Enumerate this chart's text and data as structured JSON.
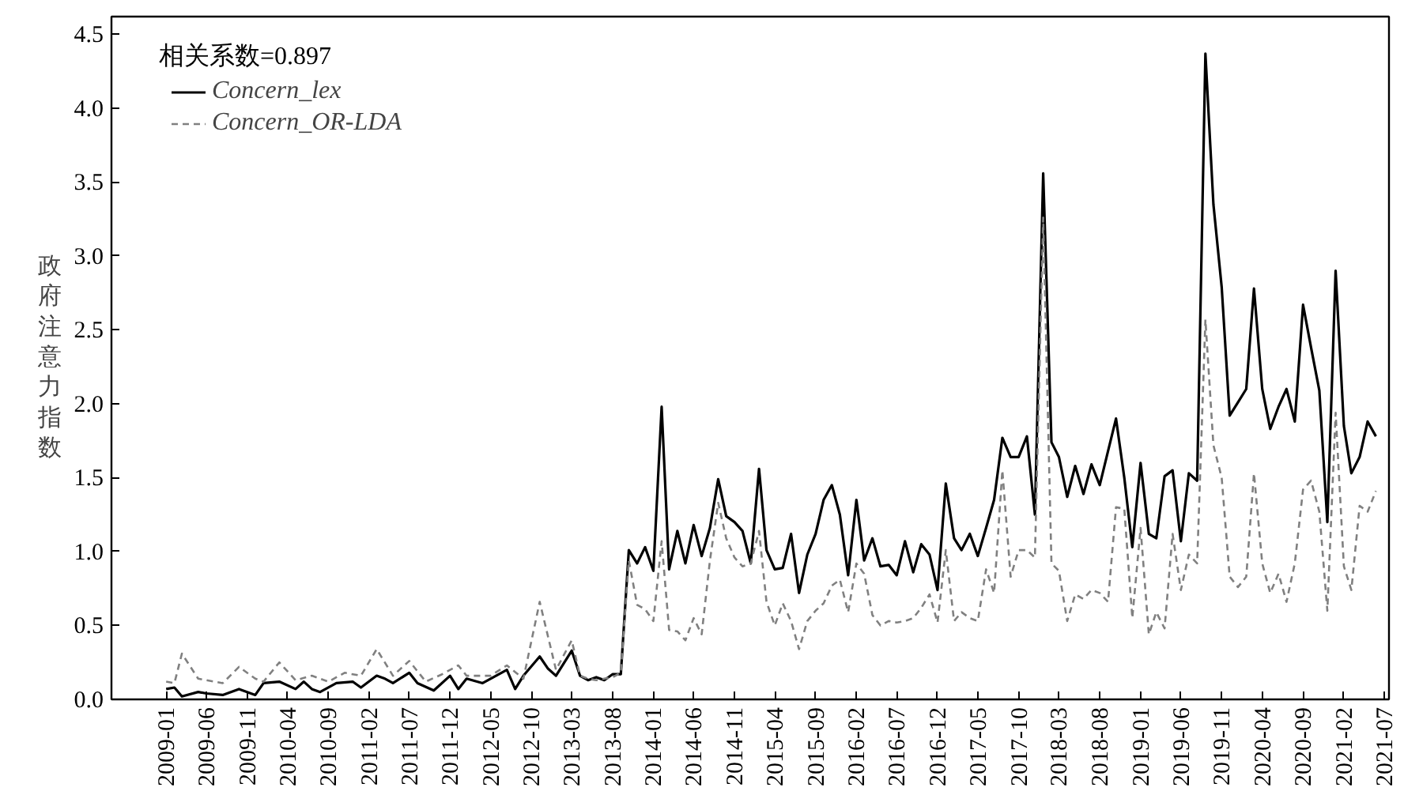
{
  "chart_data": {
    "type": "line",
    "ylabel": "政府注意力指数",
    "annotations": [
      "相关系数=0.897"
    ],
    "xlim": [
      "2008-06-10",
      "2021-07-20"
    ],
    "ylim": [
      0,
      4.62
    ],
    "xticks": [
      "2009-01",
      "2009-06",
      "2009-11",
      "2010-04",
      "2010-09",
      "2011-02",
      "2011-07",
      "2011-12",
      "2012-05",
      "2012-10",
      "2013-03",
      "2013-08",
      "2014-01",
      "2014-06",
      "2014-11",
      "2015-04",
      "2015-09",
      "2016-02",
      "2016-07",
      "2016-12",
      "2017-05",
      "2017-10",
      "2018-03",
      "2018-08",
      "2019-01",
      "2019-06",
      "2019-11",
      "2020-04",
      "2020-09",
      "2021-02",
      "2021-07"
    ],
    "yticks": [
      {
        "value": 0,
        "label": "0.0"
      },
      {
        "value": 0.5,
        "label": "0.5"
      },
      {
        "value": 1,
        "label": "1.0"
      },
      {
        "value": 1.5,
        "label": "1.5"
      },
      {
        "value": 2,
        "label": "2.0"
      },
      {
        "value": 2.5,
        "label": "2.5"
      },
      {
        "value": 3,
        "label": "3.0"
      },
      {
        "value": 3.5,
        "label": "3.5"
      },
      {
        "value": 4,
        "label": "4.0"
      },
      {
        "value": 4.5,
        "label": "4.5"
      }
    ],
    "grid": false,
    "legend": "top left",
    "series": [
      {
        "name": "Concern_lex",
        "color": "#000000",
        "line_style": "solid",
        "x": [
          "2009-01",
          "2009-02",
          "2009-03",
          "2009-05",
          "2009-06",
          "2009-08",
          "2009-10",
          "2009-12",
          "2010-01",
          "2010-03",
          "2010-05",
          "2010-06",
          "2010-07",
          "2010-08",
          "2010-10",
          "2010-12",
          "2011-01",
          "2011-03",
          "2011-04",
          "2011-05",
          "2011-07",
          "2011-08",
          "2011-10",
          "2011-12",
          "2012-01",
          "2012-02",
          "2012-04",
          "2012-05",
          "2012-07",
          "2012-08",
          "2012-09",
          "2012-11",
          "2012-12",
          "2013-01",
          "2013-03",
          "2013-04",
          "2013-05",
          "2013-06",
          "2013-07",
          "2013-08",
          "2013-09",
          "2013-10",
          "2013-11",
          "2013-12",
          "2014-01",
          "2014-02",
          "2014-03",
          "2014-04",
          "2014-05",
          "2014-06",
          "2014-07",
          "2014-08",
          "2014-09",
          "2014-10",
          "2014-11",
          "2014-12",
          "2015-01",
          "2015-02",
          "2015-03",
          "2015-04",
          "2015-05",
          "2015-06",
          "2015-07",
          "2015-08",
          "2015-09",
          "2015-10",
          "2015-11",
          "2015-12",
          "2016-01",
          "2016-02",
          "2016-03",
          "2016-04",
          "2016-05",
          "2016-06",
          "2016-07",
          "2016-08",
          "2016-09",
          "2016-10",
          "2016-11",
          "2016-12",
          "2017-01",
          "2017-02",
          "2017-03",
          "2017-04",
          "2017-05",
          "2017-06",
          "2017-07",
          "2017-08",
          "2017-09",
          "2017-10",
          "2017-11",
          "2017-12",
          "2018-01",
          "2018-02",
          "2018-03",
          "2018-04",
          "2018-05",
          "2018-06",
          "2018-07",
          "2018-08",
          "2018-09",
          "2018-10",
          "2018-11",
          "2018-12",
          "2019-01",
          "2019-02",
          "2019-03",
          "2019-04",
          "2019-05",
          "2019-06",
          "2019-07",
          "2019-08",
          "2019-09",
          "2019-10",
          "2019-11",
          "2019-12",
          "2020-01",
          "2020-02",
          "2020-03",
          "2020-04",
          "2020-05",
          "2020-06",
          "2020-07",
          "2020-08",
          "2020-09",
          "2020-10",
          "2020-11",
          "2020-12",
          "2021-01",
          "2021-02",
          "2021-03",
          "2021-04",
          "2021-05",
          "2021-06"
        ],
        "values": [
          0.07,
          0.08,
          0.02,
          0.05,
          0.04,
          0.03,
          0.07,
          0.03,
          0.11,
          0.12,
          0.07,
          0.12,
          0.07,
          0.05,
          0.11,
          0.12,
          0.08,
          0.16,
          0.14,
          0.11,
          0.18,
          0.11,
          0.06,
          0.16,
          0.07,
          0.14,
          0.11,
          0.14,
          0.2,
          0.07,
          0.16,
          0.29,
          0.21,
          0.16,
          0.33,
          0.16,
          0.13,
          0.15,
          0.13,
          0.17,
          0.17,
          1.01,
          0.92,
          1.03,
          0.87,
          1.98,
          0.88,
          1.14,
          0.92,
          1.18,
          0.97,
          1.16,
          1.49,
          1.24,
          1.2,
          1.14,
          0.92,
          1.56,
          1.01,
          0.88,
          0.89,
          1.12,
          0.72,
          0.98,
          1.12,
          1.35,
          1.45,
          1.25,
          0.84,
          1.35,
          0.94,
          1.09,
          0.9,
          0.91,
          0.84,
          1.07,
          0.86,
          1.05,
          0.98,
          0.74,
          1.46,
          1.09,
          1.01,
          1.12,
          0.97,
          1.16,
          1.35,
          1.77,
          1.64,
          1.64,
          1.78,
          1.25,
          3.56,
          1.74,
          1.64,
          1.37,
          1.58,
          1.39,
          1.59,
          1.45,
          1.68,
          1.9,
          1.5,
          1.03,
          1.6,
          1.12,
          1.09,
          1.51,
          1.55,
          1.07,
          1.53,
          1.48,
          4.37,
          3.35,
          2.79,
          1.92,
          2.01,
          2.1,
          2.78,
          2.1,
          1.83,
          1.98,
          2.1,
          1.88,
          2.67,
          2.38,
          2.09,
          1.2,
          2.9,
          1.85,
          1.53,
          1.64,
          1.88,
          1.78
        ]
      },
      {
        "name": "Concern_OR-LDA",
        "color": "#808080",
        "line_style": "dashed",
        "x": [
          "2009-01",
          "2009-02",
          "2009-03",
          "2009-05",
          "2009-08",
          "2009-10",
          "2009-12",
          "2010-01",
          "2010-03",
          "2010-05",
          "2010-07",
          "2010-09",
          "2010-11",
          "2011-01",
          "2011-03",
          "2011-05",
          "2011-07",
          "2011-09",
          "2011-11",
          "2012-01",
          "2012-02",
          "2012-05",
          "2012-07",
          "2012-09",
          "2012-11",
          "2013-01",
          "2013-03",
          "2013-04",
          "2013-05",
          "2013-06",
          "2013-07",
          "2013-08",
          "2013-09",
          "2013-10",
          "2013-11",
          "2013-12",
          "2014-01",
          "2014-02",
          "2014-03",
          "2014-04",
          "2014-05",
          "2014-06",
          "2014-07",
          "2014-08",
          "2014-09",
          "2014-10",
          "2014-11",
          "2014-12",
          "2015-01",
          "2015-02",
          "2015-03",
          "2015-04",
          "2015-05",
          "2015-06",
          "2015-07",
          "2015-08",
          "2015-09",
          "2015-10",
          "2015-11",
          "2015-12",
          "2016-01",
          "2016-02",
          "2016-03",
          "2016-04",
          "2016-05",
          "2016-06",
          "2016-07",
          "2016-08",
          "2016-09",
          "2016-10",
          "2016-11",
          "2016-12",
          "2017-01",
          "2017-02",
          "2017-03",
          "2017-04",
          "2017-05",
          "2017-06",
          "2017-07",
          "2017-08",
          "2017-09",
          "2017-10",
          "2017-11",
          "2017-12",
          "2018-01",
          "2018-02",
          "2018-03",
          "2018-04",
          "2018-05",
          "2018-06",
          "2018-07",
          "2018-08",
          "2018-09",
          "2018-10",
          "2018-11",
          "2018-12",
          "2019-01",
          "2019-02",
          "2019-03",
          "2019-04",
          "2019-05",
          "2019-06",
          "2019-07",
          "2019-08",
          "2019-09",
          "2019-10",
          "2019-11",
          "2019-12",
          "2020-01",
          "2020-02",
          "2020-03",
          "2020-04",
          "2020-05",
          "2020-06",
          "2020-07",
          "2020-08",
          "2020-09",
          "2020-10",
          "2020-11",
          "2020-12",
          "2021-01",
          "2021-02",
          "2021-03",
          "2021-04",
          "2021-05",
          "2021-06"
        ],
        "values": [
          0.12,
          0.11,
          0.31,
          0.14,
          0.11,
          0.22,
          0.14,
          0.12,
          0.25,
          0.13,
          0.16,
          0.12,
          0.18,
          0.16,
          0.34,
          0.16,
          0.26,
          0.12,
          0.17,
          0.23,
          0.16,
          0.16,
          0.23,
          0.14,
          0.66,
          0.2,
          0.4,
          0.16,
          0.14,
          0.13,
          0.14,
          0.15,
          0.18,
          0.94,
          0.64,
          0.61,
          0.53,
          1.07,
          0.47,
          0.46,
          0.4,
          0.55,
          0.44,
          0.94,
          1.33,
          1.09,
          0.96,
          0.9,
          0.92,
          1.14,
          0.66,
          0.5,
          0.65,
          0.53,
          0.34,
          0.53,
          0.6,
          0.65,
          0.77,
          0.81,
          0.59,
          0.92,
          0.85,
          0.57,
          0.5,
          0.53,
          0.52,
          0.53,
          0.55,
          0.62,
          0.71,
          0.52,
          1.01,
          0.53,
          0.59,
          0.55,
          0.53,
          0.88,
          0.72,
          1.55,
          0.83,
          1.01,
          1.01,
          0.96,
          3.26,
          0.92,
          0.87,
          0.53,
          0.71,
          0.68,
          0.74,
          0.72,
          0.66,
          1.3,
          1.29,
          0.55,
          1.16,
          0.44,
          0.59,
          0.48,
          1.12,
          0.74,
          0.98,
          0.92,
          2.57,
          1.72,
          1.5,
          0.83,
          0.76,
          0.83,
          1.53,
          0.92,
          0.72,
          0.85,
          0.66,
          0.92,
          1.42,
          1.48,
          1.27,
          0.6,
          1.94,
          0.9,
          0.74,
          1.31,
          1.27,
          1.41
        ]
      }
    ]
  }
}
